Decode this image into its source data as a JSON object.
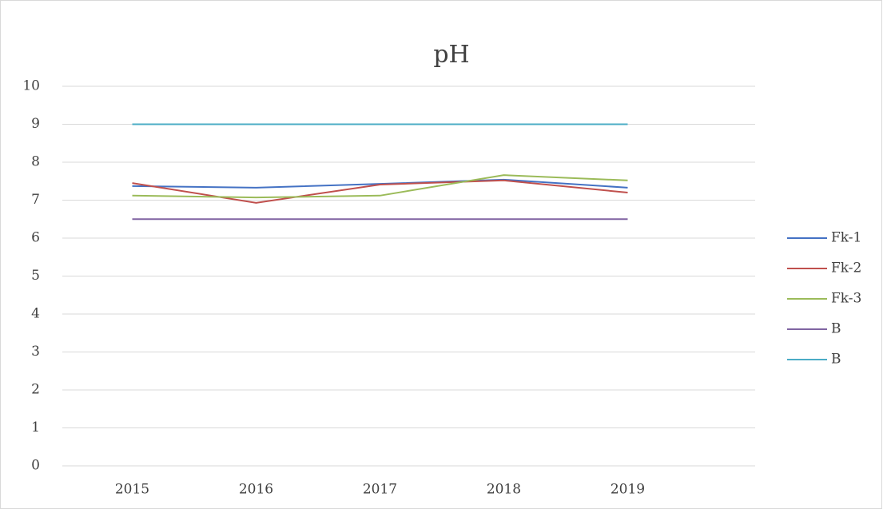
{
  "chart_data": {
    "type": "line",
    "title": "pH",
    "categories": [
      "2015",
      "2016",
      "2017",
      "2018",
      "2019"
    ],
    "series": [
      {
        "name": "Fk-1",
        "color": "#4472c4",
        "values": [
          7.37,
          7.33,
          7.43,
          7.54,
          7.33
        ]
      },
      {
        "name": "Fk-2",
        "color": "#c0504d",
        "values": [
          7.45,
          6.93,
          7.41,
          7.52,
          7.2
        ]
      },
      {
        "name": "Fk-3",
        "color": "#9bbb59",
        "values": [
          7.12,
          7.07,
          7.12,
          7.66,
          7.52
        ]
      },
      {
        "name": "B",
        "color": "#8064a2",
        "values": [
          6.5,
          6.5,
          6.5,
          6.5,
          6.5
        ]
      },
      {
        "name": "B",
        "color": "#4bacc6",
        "values": [
          9,
          9,
          9,
          9,
          9
        ]
      }
    ],
    "ylim": [
      0,
      10
    ],
    "yticks": [
      0,
      1,
      2,
      3,
      4,
      5,
      6,
      7,
      8,
      9,
      10
    ],
    "grid": true,
    "legend": "right"
  }
}
